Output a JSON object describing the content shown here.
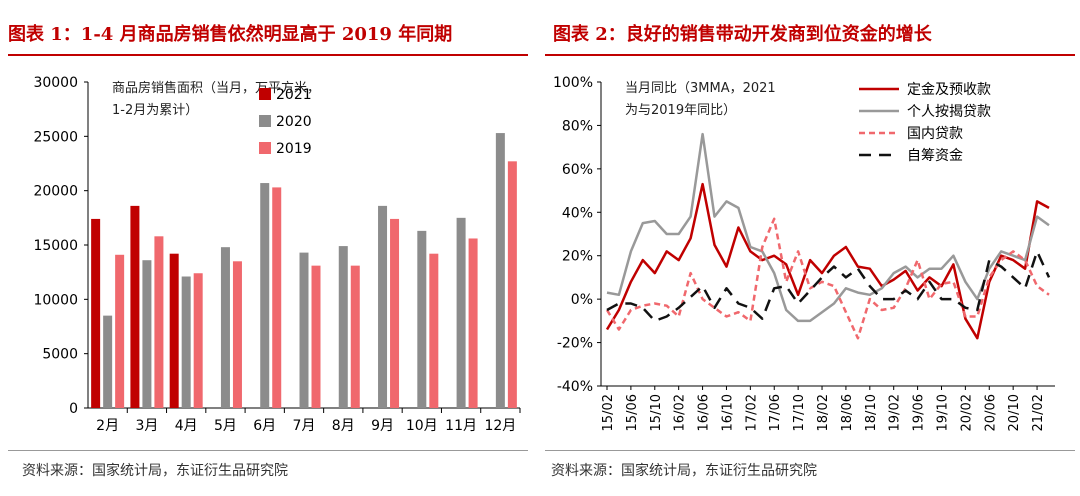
{
  "panels": [
    {
      "title": "图表 1：1-4 月商品房销售依然明显高于 2019 年同期",
      "source": "资料来源：国家统计局，东证衍生品研究院",
      "chart_data": {
        "type": "bar",
        "title": "商品房销售面积（当月，万平方米，",
        "subtitle": "1-2月为累计）",
        "categories": [
          "2月",
          "3月",
          "4月",
          "5月",
          "6月",
          "7月",
          "8月",
          "9月",
          "10月",
          "11月",
          "12月"
        ],
        "ylim": [
          0,
          30000
        ],
        "yticks": [
          0,
          5000,
          10000,
          15000,
          20000,
          25000,
          30000
        ],
        "legend_position": "top-center",
        "grid": false,
        "series": [
          {
            "name": "2021",
            "color": "#c00000",
            "values": [
              17400,
              18600,
              14200,
              null,
              null,
              null,
              null,
              null,
              null,
              null,
              null
            ]
          },
          {
            "name": "2020",
            "color": "#8c8c8c",
            "values": [
              8500,
              13600,
              12100,
              14800,
              20700,
              14300,
              14900,
              18600,
              16300,
              17500,
              25300
            ]
          },
          {
            "name": "2019",
            "color": "#f0686d",
            "values": [
              14100,
              15800,
              12400,
              13500,
              20300,
              13100,
              13100,
              17400,
              14200,
              15600,
              22700
            ]
          }
        ]
      }
    },
    {
      "title": "图表 2：良好的销售带动开发商到位资金的增长",
      "source": "资料来源：国家统计局，东证衍生品研究院",
      "chart_data": {
        "type": "line",
        "title": "当月同比（3MMA，2021",
        "subtitle": "为与2019年同比）",
        "x": [
          "15/02",
          "15/04",
          "15/06",
          "15/08",
          "15/10",
          "15/12",
          "16/02",
          "16/04",
          "16/06",
          "16/08",
          "16/10",
          "16/12",
          "17/02",
          "17/04",
          "17/06",
          "17/08",
          "17/10",
          "17/12",
          "18/02",
          "18/04",
          "18/06",
          "18/08",
          "18/10",
          "18/12",
          "19/02",
          "19/04",
          "19/06",
          "19/08",
          "19/10",
          "19/12",
          "20/02",
          "20/04",
          "20/06",
          "20/08",
          "20/10",
          "20/12",
          "21/02",
          "21/04"
        ],
        "xticks": [
          "15/02",
          "15/06",
          "15/10",
          "16/02",
          "16/06",
          "16/10",
          "17/02",
          "17/06",
          "17/10",
          "18/02",
          "18/06",
          "18/10",
          "19/02",
          "19/06",
          "19/10",
          "20/02",
          "20/06",
          "20/10",
          "21/02"
        ],
        "ylim": [
          -40,
          100
        ],
        "yticks": [
          "-40%",
          "-20%",
          "0%",
          "20%",
          "40%",
          "60%",
          "80%",
          "100%"
        ],
        "yticks_values": [
          -40,
          -20,
          0,
          20,
          40,
          60,
          80,
          100
        ],
        "legend_position": "top-right",
        "grid": false,
        "series": [
          {
            "name": "定金及预收款",
            "color": "#c00000",
            "style": "solid",
            "values": [
              -14,
              -5,
              8,
              18,
              12,
              22,
              18,
              28,
              53,
              25,
              15,
              33,
              22,
              18,
              20,
              16,
              2,
              18,
              12,
              20,
              24,
              15,
              14,
              6,
              9,
              13,
              4,
              10,
              6,
              16,
              -9,
              -18,
              8,
              20,
              18,
              14,
              45,
              42
            ]
          },
          {
            "name": "个人按揭贷款",
            "color": "#999999",
            "style": "solid",
            "values": [
              3,
              2,
              22,
              35,
              36,
              30,
              30,
              38,
              76,
              38,
              45,
              42,
              24,
              22,
              12,
              -5,
              -10,
              -10,
              -6,
              -2,
              5,
              3,
              2,
              5,
              12,
              15,
              10,
              14,
              14,
              20,
              8,
              0,
              14,
              22,
              20,
              18,
              38,
              34
            ]
          },
          {
            "name": "国内贷款",
            "color": "#f0686d",
            "style": "dashed",
            "values": [
              -5,
              -14,
              -5,
              -3,
              -2,
              -3,
              -8,
              12,
              0,
              -4,
              -8,
              -6,
              -10,
              24,
              37,
              8,
              22,
              5,
              8,
              6,
              -6,
              -18,
              0,
              -5,
              -4,
              5,
              18,
              0,
              7,
              8,
              -8,
              -8,
              10,
              18,
              22,
              18,
              6,
              2
            ]
          },
          {
            "name": "自筹资金",
            "color": "#111111",
            "style": "dashed",
            "values": [
              -5,
              -2,
              -2,
              -4,
              -10,
              -8,
              -4,
              1,
              6,
              -4,
              5,
              -2,
              -4,
              -9,
              5,
              6,
              -2,
              4,
              10,
              15,
              10,
              14,
              6,
              0,
              0,
              4,
              0,
              8,
              0,
              0,
              -4,
              -5,
              18,
              15,
              10,
              5,
              22,
              10
            ]
          }
        ]
      }
    }
  ]
}
